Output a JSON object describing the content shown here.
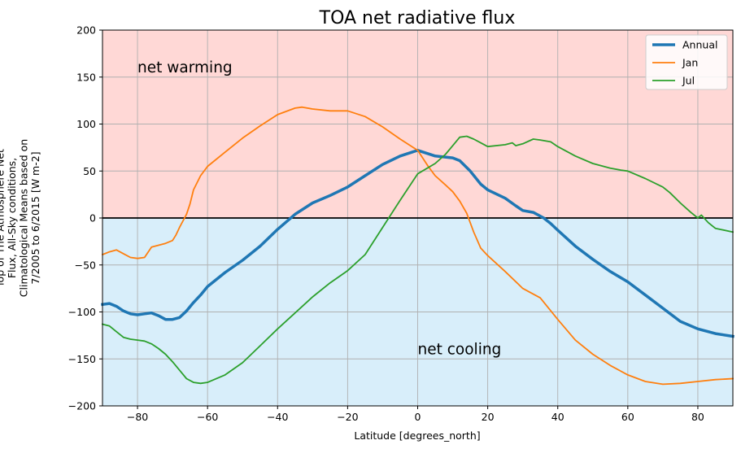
{
  "chart_data": {
    "type": "line",
    "title": "TOA net radiative flux",
    "xlabel": "Latitude [degrees_north]",
    "ylabel_lines": [
      "Top of The Atmosphere Net",
      "Flux, All-Sky conditions,",
      "Climatological Means based on",
      "7/2005 to 6/2015 [W m-2]"
    ],
    "xlim": [
      -90,
      90
    ],
    "ylim": [
      -200,
      200
    ],
    "xticks": [
      -80,
      -60,
      -40,
      -20,
      0,
      20,
      40,
      60,
      80
    ],
    "yticks": [
      -200,
      -150,
      -100,
      -50,
      0,
      50,
      100,
      150,
      200
    ],
    "grid": true,
    "legend_position": "top-right",
    "regions": [
      {
        "name": "warming",
        "y0": 0,
        "y1": 200,
        "color": "#ffd8d6"
      },
      {
        "name": "cooling",
        "y0": -200,
        "y1": 0,
        "color": "#d8eefa"
      }
    ],
    "annotations": [
      {
        "text": "net warming",
        "x": -80,
        "y": 160
      },
      {
        "text": "net cooling",
        "x": 0,
        "y": -140
      }
    ],
    "series": [
      {
        "name": "Annual",
        "color": "#1f77b4",
        "width": 3.5,
        "points": [
          [
            -90,
            -92
          ],
          [
            -88,
            -91
          ],
          [
            -86,
            -94
          ],
          [
            -84,
            -99
          ],
          [
            -82,
            -102
          ],
          [
            -80,
            -103
          ],
          [
            -78,
            -102
          ],
          [
            -76,
            -101
          ],
          [
            -74,
            -104
          ],
          [
            -72,
            -108
          ],
          [
            -70,
            -108
          ],
          [
            -68,
            -106
          ],
          [
            -66,
            -99
          ],
          [
            -64,
            -90
          ],
          [
            -62,
            -82
          ],
          [
            -60,
            -73
          ],
          [
            -55,
            -58
          ],
          [
            -50,
            -45
          ],
          [
            -45,
            -30
          ],
          [
            -40,
            -12
          ],
          [
            -35,
            4
          ],
          [
            -30,
            16
          ],
          [
            -25,
            24
          ],
          [
            -20,
            33
          ],
          [
            -15,
            45
          ],
          [
            -10,
            57
          ],
          [
            -5,
            66
          ],
          [
            0,
            72
          ],
          [
            5,
            66
          ],
          [
            10,
            64
          ],
          [
            12,
            61
          ],
          [
            15,
            50
          ],
          [
            18,
            36
          ],
          [
            20,
            30
          ],
          [
            25,
            21
          ],
          [
            28,
            13
          ],
          [
            30,
            8
          ],
          [
            33,
            6
          ],
          [
            36,
            0
          ],
          [
            38,
            -6
          ],
          [
            40,
            -13
          ],
          [
            45,
            -30
          ],
          [
            50,
            -44
          ],
          [
            55,
            -57
          ],
          [
            60,
            -68
          ],
          [
            65,
            -82
          ],
          [
            70,
            -96
          ],
          [
            75,
            -110
          ],
          [
            80,
            -118
          ],
          [
            85,
            -123
          ],
          [
            90,
            -126
          ]
        ]
      },
      {
        "name": "Jan",
        "color": "#ff7f0e",
        "width": 1.8,
        "points": [
          [
            -90,
            -39
          ],
          [
            -88,
            -36
          ],
          [
            -86,
            -34
          ],
          [
            -84,
            -38
          ],
          [
            -82,
            -42
          ],
          [
            -80,
            -43
          ],
          [
            -78,
            -42
          ],
          [
            -76,
            -31
          ],
          [
            -74,
            -29
          ],
          [
            -72,
            -27
          ],
          [
            -70,
            -24
          ],
          [
            -69,
            -18
          ],
          [
            -68,
            -10
          ],
          [
            -67,
            -3
          ],
          [
            -66,
            4
          ],
          [
            -65,
            15
          ],
          [
            -64,
            30
          ],
          [
            -62,
            45
          ],
          [
            -60,
            55
          ],
          [
            -55,
            70
          ],
          [
            -50,
            85
          ],
          [
            -45,
            98
          ],
          [
            -40,
            110
          ],
          [
            -35,
            117
          ],
          [
            -33,
            118
          ],
          [
            -30,
            116
          ],
          [
            -25,
            114
          ],
          [
            -20,
            114
          ],
          [
            -15,
            108
          ],
          [
            -10,
            97
          ],
          [
            -5,
            84
          ],
          [
            0,
            72
          ],
          [
            3,
            55
          ],
          [
            5,
            45
          ],
          [
            8,
            35
          ],
          [
            10,
            28
          ],
          [
            12,
            18
          ],
          [
            14,
            5
          ],
          [
            16,
            -15
          ],
          [
            18,
            -32
          ],
          [
            20,
            -40
          ],
          [
            25,
            -57
          ],
          [
            30,
            -75
          ],
          [
            35,
            -85
          ],
          [
            40,
            -108
          ],
          [
            45,
            -130
          ],
          [
            50,
            -145
          ],
          [
            55,
            -157
          ],
          [
            60,
            -167
          ],
          [
            65,
            -174
          ],
          [
            70,
            -177
          ],
          [
            75,
            -176
          ],
          [
            80,
            -174
          ],
          [
            85,
            -172
          ],
          [
            90,
            -171
          ]
        ]
      },
      {
        "name": "Jul",
        "color": "#2ca02c",
        "width": 1.8,
        "points": [
          [
            -90,
            -113
          ],
          [
            -88,
            -115
          ],
          [
            -86,
            -121
          ],
          [
            -84,
            -127
          ],
          [
            -82,
            -129
          ],
          [
            -80,
            -130
          ],
          [
            -78,
            -131
          ],
          [
            -76,
            -134
          ],
          [
            -74,
            -139
          ],
          [
            -72,
            -145
          ],
          [
            -70,
            -153
          ],
          [
            -68,
            -162
          ],
          [
            -66,
            -171
          ],
          [
            -64,
            -175
          ],
          [
            -62,
            -176
          ],
          [
            -60,
            -175
          ],
          [
            -55,
            -167
          ],
          [
            -50,
            -154
          ],
          [
            -45,
            -136
          ],
          [
            -40,
            -118
          ],
          [
            -35,
            -101
          ],
          [
            -30,
            -84
          ],
          [
            -25,
            -69
          ],
          [
            -20,
            -56
          ],
          [
            -15,
            -39
          ],
          [
            -10,
            -10
          ],
          [
            -5,
            19
          ],
          [
            0,
            47
          ],
          [
            5,
            58
          ],
          [
            8,
            68
          ],
          [
            10,
            77
          ],
          [
            12,
            86
          ],
          [
            14,
            87
          ],
          [
            16,
            84
          ],
          [
            18,
            80
          ],
          [
            20,
            76
          ],
          [
            25,
            78
          ],
          [
            27,
            80
          ],
          [
            28,
            77
          ],
          [
            30,
            79
          ],
          [
            33,
            84
          ],
          [
            35,
            83
          ],
          [
            38,
            81
          ],
          [
            40,
            76
          ],
          [
            45,
            66
          ],
          [
            50,
            58
          ],
          [
            55,
            53
          ],
          [
            58,
            51
          ],
          [
            60,
            50
          ],
          [
            65,
            42
          ],
          [
            70,
            33
          ],
          [
            72,
            27
          ],
          [
            75,
            16
          ],
          [
            78,
            6
          ],
          [
            80,
            0
          ],
          [
            81,
            3
          ],
          [
            83,
            -5
          ],
          [
            85,
            -11
          ],
          [
            90,
            -15
          ]
        ]
      }
    ]
  }
}
